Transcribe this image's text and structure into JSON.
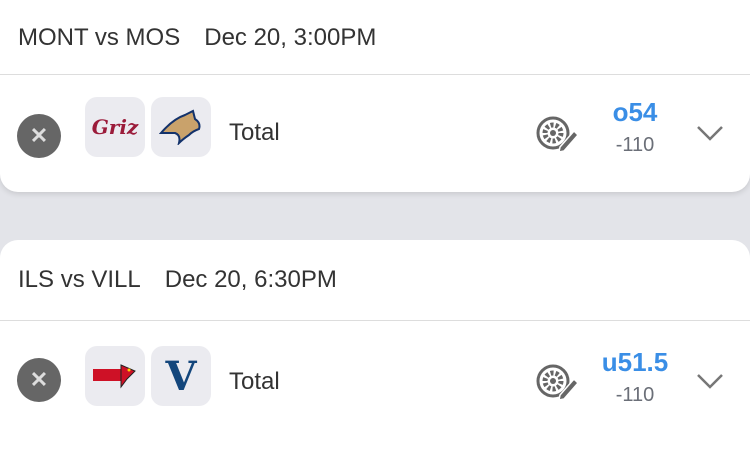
{
  "games": [
    {
      "matchup": "MONT vs MOS",
      "date": "Dec 20, 3:00PM",
      "market": "Total",
      "line": "o54",
      "price": "-110",
      "team1_logo": "Griz",
      "team2_logo": "bobcat"
    },
    {
      "matchup": "ILS vs VILL",
      "date": "Dec 20, 6:30PM",
      "market": "Total",
      "line": "u51.5",
      "price": "-110",
      "team1_logo": "Illinois State",
      "team2_logo": "V"
    }
  ],
  "colors": {
    "accent": "#3a8ee6",
    "griz": "#9b1b3a",
    "vill": "#13467c",
    "ils": "#ce1126"
  }
}
